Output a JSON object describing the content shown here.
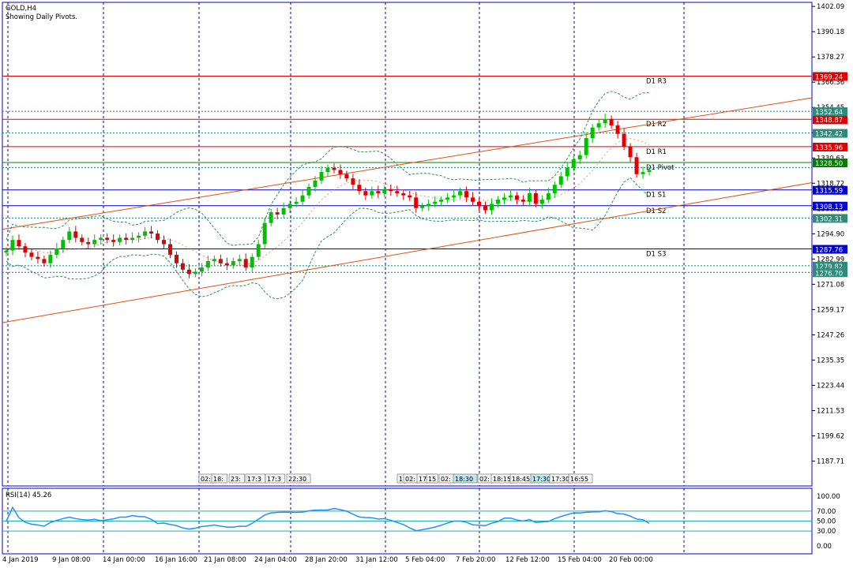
{
  "header": {
    "symbol": "GOLD,H4",
    "subtitle": "Showing Daily Pivots."
  },
  "rsi_label": "RSI(14) 45.26",
  "colors": {
    "frame": "#0000cc",
    "grid": "#0000cc",
    "bull": "#00c000",
    "bear": "#e00000",
    "resistance": "#e00000",
    "support": "#0000cc",
    "pivot": "#008000",
    "channel": "#e05010",
    "bands": "#2e8b57",
    "rsi_line": "#1e90ff",
    "rsi_levels": "#20b2aa"
  },
  "chart_data": [
    {
      "type": "candlestick",
      "title": "GOLD,H4",
      "subtitle": "Showing Daily Pivots.",
      "y_ticks": [
        "1402.09",
        "1390.18",
        "1378.27",
        "1366.36",
        "1354.45",
        "1342.54",
        "1330.63",
        "1318.72",
        "1306.81",
        "1294.90",
        "1282.99",
        "1271.08",
        "1259.17",
        "1247.26",
        "1235.35",
        "1223.44",
        "1211.53",
        "1199.62",
        "1187.71"
      ],
      "ylim": [
        1176,
        1404
      ],
      "x_ticks": [
        "4 Jan 2019",
        "9 Jan 08:00",
        "14 Jan 00:00",
        "16 Jan 16:00",
        "21 Jan 08:00",
        "24 Jan 04:00",
        "28 Jan 20:00",
        "31 Jan 12:00",
        "5 Feb 04:00",
        "7 Feb 20:00",
        "12 Feb 12:00",
        "15 Feb 04:00",
        "20 Feb 00:00"
      ],
      "pivots": [
        {
          "name": "D1 R3",
          "value": 1369.24,
          "label": "1369.24",
          "kind": "resistance"
        },
        {
          "name": "D1 R2",
          "value": 1348.87,
          "label": "1348.87",
          "kind": "resistance"
        },
        {
          "name": "D1 R1",
          "value": 1335.96,
          "label": "1335.96",
          "kind": "resistance"
        },
        {
          "name": "D1 Pivot",
          "value": 1328.5,
          "label": "1328.50",
          "kind": "pivot"
        },
        {
          "name": "D1 S1",
          "value": 1315.59,
          "label": "1315.59",
          "kind": "support"
        },
        {
          "name": "D1 S2",
          "value": 1308.13,
          "label": "1308.13",
          "kind": "support"
        },
        {
          "name": "D1 S3",
          "value": 1287.76,
          "label": "1287.76",
          "kind": "support"
        }
      ],
      "price_badges": [
        {
          "value": 1352.64,
          "label": "1352.64"
        },
        {
          "value": 1342.42,
          "label": "1342.42"
        },
        {
          "value": 1302.31,
          "label": "1302.31"
        },
        {
          "value": 1279.82,
          "label": "1279.82"
        },
        {
          "value": 1276.7,
          "label": "1276.70"
        }
      ],
      "dotted_levels": [
        1352.64,
        1342.42,
        1326.14,
        1302.31,
        1279.82,
        1276.7
      ],
      "closes": [
        1287,
        1292,
        1289,
        1286,
        1284,
        1283,
        1281,
        1285,
        1288,
        1292,
        1296,
        1293,
        1291,
        1290,
        1292,
        1293,
        1292,
        1291,
        1293,
        1292,
        1293,
        1294,
        1296,
        1295,
        1292,
        1290,
        1285,
        1281,
        1278,
        1276,
        1277,
        1279,
        1282,
        1283,
        1281,
        1280,
        1282,
        1283,
        1279,
        1284,
        1290,
        1300,
        1305,
        1304,
        1307,
        1309,
        1310,
        1313,
        1317,
        1320,
        1324,
        1326,
        1325,
        1323,
        1321,
        1318,
        1315,
        1313,
        1315,
        1314,
        1316,
        1315,
        1314,
        1313,
        1312,
        1307,
        1308,
        1309,
        1310,
        1311,
        1312,
        1313,
        1315,
        1312,
        1310,
        1308,
        1306,
        1309,
        1311,
        1312,
        1313,
        1311,
        1310,
        1314,
        1309,
        1311,
        1314,
        1318,
        1322,
        1326,
        1330,
        1332,
        1340,
        1345,
        1347,
        1349,
        1346,
        1342,
        1336,
        1331,
        1323,
        1324,
        1325
      ],
      "rsi": {
        "name": "RSI(14)",
        "last": 45.26,
        "levels": [
          70,
          50,
          30
        ],
        "ticks": [
          "100.00",
          "70.00",
          "50.00",
          "30.00",
          "0.00"
        ]
      },
      "news_markers": [
        "02:",
        "18:",
        "23:",
        "17:3",
        "17:3",
        "22:30",
        "1",
        "02:",
        "17:0",
        "15",
        "02:",
        "18:30",
        "02:",
        "18:15",
        "18:45",
        "17:30",
        "17:30",
        "16:55"
      ]
    }
  ]
}
